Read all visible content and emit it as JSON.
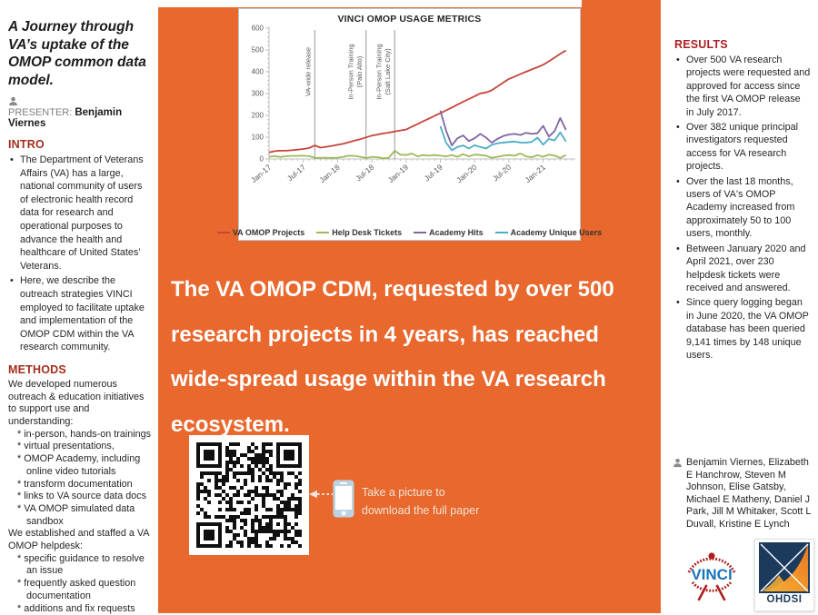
{
  "colors": {
    "background_orange": "#E8682E",
    "accent_intro_methods": "#A52C1B",
    "accent_results": "#AD1F23",
    "headline_text": "#FFFFFF",
    "series_red": "#C5443C",
    "series_green": "#9BBB59",
    "series_purple": "#8064A2",
    "series_cyan": "#4BACC6",
    "vinci_blue": "#1B75BB",
    "vinci_red": "#AE1E1E",
    "ohdsi_navy": "#1B3A5C",
    "ohdsi_orange": "#E87722"
  },
  "left_panel": {
    "title": "A Journey through VA’s uptake of the OMOP common data model.",
    "presenter_label": "PRESENTER:",
    "presenter_name": "Benjamin Viernes",
    "intro": {
      "heading": "INTRO",
      "bullets": [
        "The Department of Veterans Affairs (VA) has a large, national community of users of electronic health record data for research and operational purposes to advance the health and healthcare of United States’ Veterans.",
        "Here, we describe the outreach strategies VINCI employed to facilitate uptake and implementation of the OMOP CDM within the VA research community."
      ]
    },
    "methods": {
      "heading": "METHODS",
      "lines": [
        {
          "text": "We developed numerous outreach & education initiatives to support use and understanding:",
          "indent": 0
        },
        {
          "text": "* in-person, hands-on trainings",
          "indent": 1
        },
        {
          "text": "* virtual presentations,",
          "indent": 1
        },
        {
          "text": "* OMOP Academy, including online video tutorials",
          "indent": 1
        },
        {
          "text": "* transform documentation",
          "indent": 1
        },
        {
          "text": "* links to VA source data docs",
          "indent": 1
        },
        {
          "text": "* VA OMOP simulated data sandbox",
          "indent": 1
        },
        {
          "text": "We established and staffed a VA OMOP helpdesk:",
          "indent": 0
        },
        {
          "text": "* specific guidance to resolve an issue",
          "indent": 1
        },
        {
          "text": "* frequently asked question documentation",
          "indent": 1
        },
        {
          "text": "* additions and fix requests",
          "indent": 1
        }
      ]
    }
  },
  "headline": "The VA OMOP CDM, requested by over 500 research projects in 4 years, has reached wide-spread usage within the VA research ecosystem.",
  "qr_caption": "Take a picture to\ndownload the full paper",
  "results": {
    "heading": "RESULTS",
    "bullets": [
      "Over 500 VA research projects were requested and approved for access since the first VA OMOP release in July 2017.",
      "Over 382 unique principal investigators requested access for VA research projects.",
      "Over the last 18 months, users of VA's OMOP Academy increased from approximately 50 to 100 users, monthly.",
      "Between January 2020 and April 2021, over 230 helpdesk tickets were received and answered.",
      "Since query logging began in June 2020, the VA OMOP database has been queried 9,141 times by 148 unique users."
    ]
  },
  "authors": "Benjamin Viernes, Elizabeth E Hanchrow, Steven M Johnson, Elise Gatsby, Michael E Matheny, Daniel J Park, Jill M Whitaker, Scott L Duvall, Kristine E Lynch",
  "logos": {
    "vinci_text": "VINCI",
    "ohdsi_text": "OHDSI"
  },
  "chart_data": {
    "type": "line",
    "title": "VINCI OMOP USAGE METRICS",
    "x_unit": "month",
    "x_start": "Jan-17",
    "x_end": "Jun-21",
    "n_months": 54,
    "x_tick_labels": [
      "Jan-17",
      "Jul-17",
      "Jan-18",
      "Jul-18",
      "Jan-19",
      "Jul-19",
      "Jan-20",
      "Jul-20",
      "Jan-21"
    ],
    "x_tick_every": 6,
    "ylim": [
      0,
      600
    ],
    "y_tick_step": 100,
    "grid": false,
    "legend_position": "bottom",
    "annotations": [
      {
        "label": [
          "VA-wide release"
        ],
        "month": "Sep-17",
        "index": 8
      },
      {
        "label": [
          "In-Person Training",
          "(Palo Alto)"
        ],
        "month": "Jun-18",
        "index": 17
      },
      {
        "label": [
          "In-Person Training",
          "(Salt Lake City)"
        ],
        "month": "Nov-18",
        "index": 22
      }
    ],
    "series": [
      {
        "name": "VA OMOP Projects",
        "color": "#C5443C",
        "start_index": 0,
        "values": [
          30,
          36,
          38,
          38,
          40,
          43,
          46,
          50,
          62,
          52,
          56,
          60,
          65,
          70,
          77,
          84,
          91,
          99,
          107,
          112,
          117,
          121,
          126,
          131,
          135,
          148,
          160,
          173,
          185,
          198,
          210,
          223,
          236,
          249,
          262,
          275,
          288,
          301,
          305,
          315,
          332,
          350,
          367,
          378,
          389,
          400,
          411,
          421,
          432,
          448,
          465,
          482,
          498
        ]
      },
      {
        "name": "Help Desk Tickets",
        "color": "#9BBB59",
        "start_index": 0,
        "values": [
          10,
          13,
          9,
          13,
          14,
          14,
          15,
          13,
          6,
          5,
          6,
          5,
          6,
          10,
          15,
          14,
          10,
          4,
          10,
          8,
          3,
          6,
          38,
          20,
          18,
          25,
          12,
          18,
          15,
          18,
          15,
          12,
          18,
          10,
          22,
          12,
          20,
          18,
          15,
          5,
          10,
          15,
          18,
          15,
          25,
          12,
          8,
          18,
          10,
          20,
          15,
          5,
          18
        ]
      },
      {
        "name": "Academy Hits",
        "color": "#8064A2",
        "start_index": 30,
        "values": [
          222,
          130,
          62,
          95,
          108,
          82,
          95,
          115,
          98,
          75,
          92,
          105,
          112,
          115,
          110,
          120,
          115,
          118,
          152,
          103,
          128,
          188,
          133
        ]
      },
      {
        "name": "Academy Unique Users",
        "color": "#4BACC6",
        "start_index": 30,
        "values": [
          150,
          75,
          40,
          55,
          62,
          48,
          63,
          55,
          48,
          65,
          72,
          75,
          78,
          80,
          75,
          75,
          78,
          98,
          66,
          92,
          85,
          122,
          80
        ]
      }
    ]
  }
}
